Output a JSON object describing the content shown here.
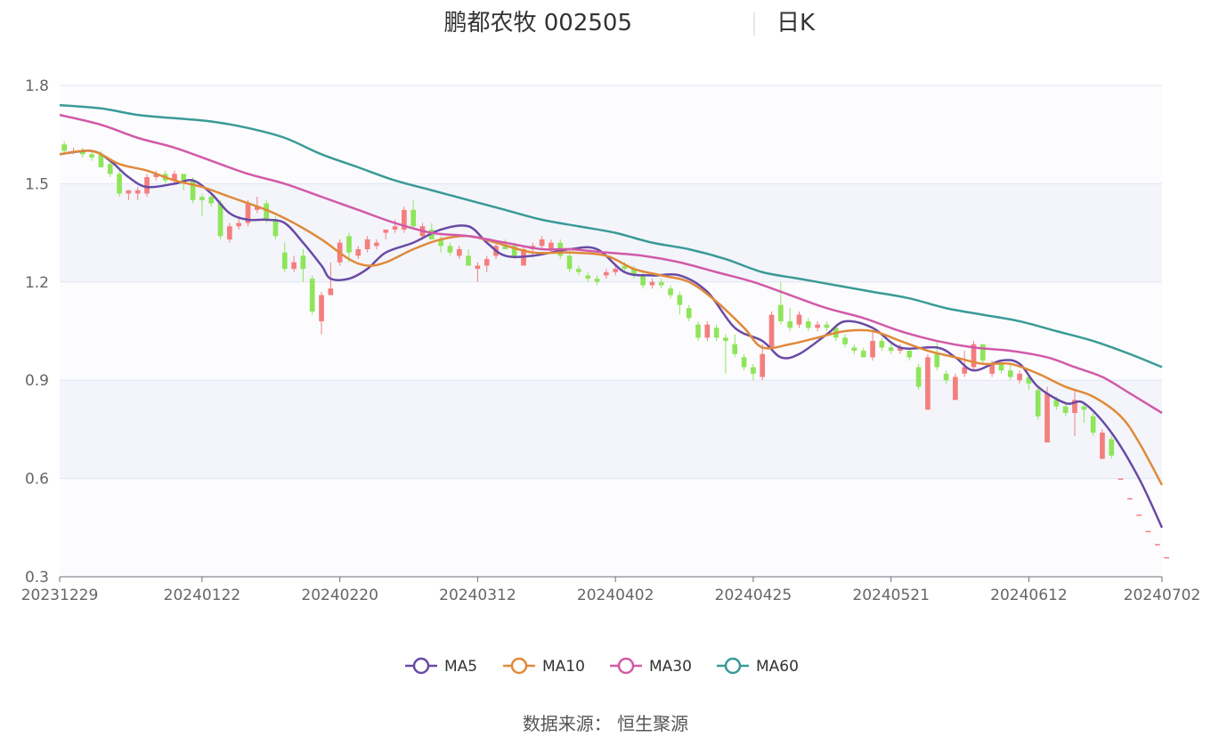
{
  "header": {
    "title": "鹏都农牧 002505",
    "subtitle": "日K"
  },
  "source_label": "数据来源：  恒生聚源",
  "colors": {
    "up": "#f47e7e",
    "down": "#8fe55a",
    "band": "#f3f5fb",
    "grid": "#e0e6f1",
    "MA5": "#6a4aa5",
    "MA10": "#e08a3a",
    "MA30": "#d25aa8",
    "MA60": "#3a9a96"
  },
  "chart_data": {
    "type": "candlestick",
    "ylim": [
      0.3,
      1.8
    ],
    "yticks": [
      "1.8",
      "1.5",
      "1.2",
      "0.9",
      "0.6",
      "0.3"
    ],
    "yticks_values": [
      1.8,
      1.5,
      1.2,
      0.9,
      0.6,
      0.3
    ],
    "xticks": [
      "20231229",
      "20240122",
      "20240220",
      "20240312",
      "20240402",
      "20240425",
      "20240521",
      "20240612",
      "20240702"
    ],
    "xtick_index": [
      0,
      15,
      30,
      45,
      60,
      75,
      90,
      105,
      119
    ],
    "n_days": 120,
    "grid": true,
    "legend_position": "bottom",
    "ma_series": [
      {
        "name": "MA5",
        "points": [
          [
            0,
            1.59
          ],
          [
            3,
            1.6
          ],
          [
            5,
            1.57
          ],
          [
            7,
            1.52
          ],
          [
            9,
            1.49
          ],
          [
            12,
            1.5
          ],
          [
            14,
            1.51
          ],
          [
            16,
            1.47
          ],
          [
            18,
            1.41
          ],
          [
            20,
            1.39
          ],
          [
            22,
            1.39
          ],
          [
            24,
            1.38
          ],
          [
            26,
            1.32
          ],
          [
            28,
            1.25
          ],
          [
            29,
            1.21
          ],
          [
            31,
            1.21
          ],
          [
            33,
            1.24
          ],
          [
            35,
            1.29
          ],
          [
            38,
            1.32
          ],
          [
            41,
            1.36
          ],
          [
            44,
            1.37
          ],
          [
            46,
            1.32
          ],
          [
            48,
            1.28
          ],
          [
            51,
            1.28
          ],
          [
            55,
            1.3
          ],
          [
            58,
            1.3
          ],
          [
            61,
            1.23
          ],
          [
            64,
            1.22
          ],
          [
            67,
            1.22
          ],
          [
            70,
            1.17
          ],
          [
            73,
            1.06
          ],
          [
            76,
            1.02
          ],
          [
            78,
            0.97
          ],
          [
            80,
            0.98
          ],
          [
            83,
            1.04
          ],
          [
            85,
            1.08
          ],
          [
            88,
            1.06
          ],
          [
            91,
            1.0
          ],
          [
            95,
            1.0
          ],
          [
            97,
            0.97
          ],
          [
            99,
            0.93
          ],
          [
            102,
            0.96
          ],
          [
            104,
            0.95
          ],
          [
            106,
            0.88
          ],
          [
            109,
            0.83
          ],
          [
            111,
            0.83
          ],
          [
            114,
            0.74
          ],
          [
            117,
            0.6
          ],
          [
            119,
            0.45
          ]
        ]
      },
      {
        "name": "MA10",
        "points": [
          [
            0,
            1.59
          ],
          [
            3,
            1.6
          ],
          [
            6,
            1.56
          ],
          [
            9,
            1.54
          ],
          [
            12,
            1.51
          ],
          [
            15,
            1.49
          ],
          [
            18,
            1.46
          ],
          [
            22,
            1.42
          ],
          [
            25,
            1.38
          ],
          [
            28,
            1.33
          ],
          [
            31,
            1.27
          ],
          [
            33,
            1.25
          ],
          [
            35,
            1.26
          ],
          [
            38,
            1.3
          ],
          [
            41,
            1.33
          ],
          [
            44,
            1.34
          ],
          [
            47,
            1.32
          ],
          [
            51,
            1.29
          ],
          [
            55,
            1.29
          ],
          [
            59,
            1.28
          ],
          [
            62,
            1.24
          ],
          [
            65,
            1.22
          ],
          [
            68,
            1.2
          ],
          [
            71,
            1.14
          ],
          [
            74,
            1.06
          ],
          [
            76,
            1.0
          ],
          [
            79,
            1.01
          ],
          [
            82,
            1.03
          ],
          [
            85,
            1.05
          ],
          [
            88,
            1.05
          ],
          [
            91,
            1.02
          ],
          [
            94,
            0.99
          ],
          [
            97,
            0.97
          ],
          [
            100,
            0.95
          ],
          [
            103,
            0.95
          ],
          [
            106,
            0.92
          ],
          [
            109,
            0.88
          ],
          [
            112,
            0.85
          ],
          [
            115,
            0.79
          ],
          [
            117,
            0.71
          ],
          [
            119,
            0.58
          ]
        ]
      },
      {
        "name": "MA30",
        "points": [
          [
            0,
            1.71
          ],
          [
            4,
            1.68
          ],
          [
            8,
            1.64
          ],
          [
            12,
            1.61
          ],
          [
            16,
            1.57
          ],
          [
            20,
            1.53
          ],
          [
            24,
            1.5
          ],
          [
            28,
            1.46
          ],
          [
            32,
            1.42
          ],
          [
            36,
            1.38
          ],
          [
            40,
            1.35
          ],
          [
            44,
            1.34
          ],
          [
            48,
            1.32
          ],
          [
            52,
            1.3
          ],
          [
            55,
            1.3
          ],
          [
            59,
            1.29
          ],
          [
            63,
            1.28
          ],
          [
            67,
            1.26
          ],
          [
            71,
            1.23
          ],
          [
            75,
            1.2
          ],
          [
            79,
            1.16
          ],
          [
            83,
            1.12
          ],
          [
            87,
            1.09
          ],
          [
            91,
            1.05
          ],
          [
            95,
            1.02
          ],
          [
            99,
            1.0
          ],
          [
            103,
            0.99
          ],
          [
            107,
            0.97
          ],
          [
            110,
            0.94
          ],
          [
            113,
            0.91
          ],
          [
            116,
            0.86
          ],
          [
            119,
            0.8
          ]
        ]
      },
      {
        "name": "MA60",
        "points": [
          [
            0,
            1.74
          ],
          [
            4,
            1.73
          ],
          [
            8,
            1.71
          ],
          [
            12,
            1.7
          ],
          [
            16,
            1.69
          ],
          [
            20,
            1.67
          ],
          [
            24,
            1.64
          ],
          [
            28,
            1.59
          ],
          [
            32,
            1.55
          ],
          [
            36,
            1.51
          ],
          [
            40,
            1.48
          ],
          [
            44,
            1.45
          ],
          [
            48,
            1.42
          ],
          [
            52,
            1.39
          ],
          [
            56,
            1.37
          ],
          [
            60,
            1.35
          ],
          [
            64,
            1.32
          ],
          [
            68,
            1.3
          ],
          [
            72,
            1.27
          ],
          [
            76,
            1.23
          ],
          [
            80,
            1.21
          ],
          [
            84,
            1.19
          ],
          [
            88,
            1.17
          ],
          [
            92,
            1.15
          ],
          [
            96,
            1.12
          ],
          [
            100,
            1.1
          ],
          [
            104,
            1.08
          ],
          [
            108,
            1.05
          ],
          [
            112,
            1.02
          ],
          [
            116,
            0.98
          ],
          [
            119,
            0.94
          ]
        ]
      }
    ],
    "candles": [
      [
        1.62,
        1.6,
        1.63,
        1.59
      ],
      [
        1.6,
        1.6,
        1.61,
        1.59
      ],
      [
        1.6,
        1.59,
        1.61,
        1.58
      ],
      [
        1.59,
        1.58,
        1.6,
        1.57
      ],
      [
        1.59,
        1.55,
        1.6,
        1.55
      ],
      [
        1.56,
        1.53,
        1.57,
        1.52
      ],
      [
        1.53,
        1.47,
        1.54,
        1.46
      ],
      [
        1.47,
        1.48,
        1.48,
        1.45
      ],
      [
        1.47,
        1.48,
        1.49,
        1.45
      ],
      [
        1.47,
        1.52,
        1.53,
        1.46
      ],
      [
        1.52,
        1.53,
        1.54,
        1.51
      ],
      [
        1.53,
        1.51,
        1.54,
        1.5
      ],
      [
        1.51,
        1.53,
        1.54,
        1.5
      ],
      [
        1.53,
        1.5,
        1.53,
        1.48
      ],
      [
        1.51,
        1.45,
        1.52,
        1.44
      ],
      [
        1.46,
        1.45,
        1.47,
        1.4
      ],
      [
        1.46,
        1.44,
        1.47,
        1.43
      ],
      [
        1.44,
        1.34,
        1.45,
        1.33
      ],
      [
        1.33,
        1.37,
        1.38,
        1.32
      ],
      [
        1.37,
        1.38,
        1.4,
        1.36
      ],
      [
        1.38,
        1.44,
        1.45,
        1.37
      ],
      [
        1.42,
        1.43,
        1.46,
        1.41
      ],
      [
        1.44,
        1.39,
        1.45,
        1.38
      ],
      [
        1.39,
        1.34,
        1.4,
        1.33
      ],
      [
        1.29,
        1.24,
        1.32,
        1.23
      ],
      [
        1.24,
        1.26,
        1.28,
        1.23
      ],
      [
        1.28,
        1.24,
        1.3,
        1.2
      ],
      [
        1.21,
        1.11,
        1.22,
        1.1
      ],
      [
        1.08,
        1.16,
        1.17,
        1.04
      ],
      [
        1.16,
        1.18,
        1.26,
        1.16
      ],
      [
        1.26,
        1.32,
        1.33,
        1.25
      ],
      [
        1.34,
        1.29,
        1.35,
        1.26
      ],
      [
        1.28,
        1.3,
        1.31,
        1.27
      ],
      [
        1.3,
        1.33,
        1.34,
        1.29
      ],
      [
        1.31,
        1.32,
        1.33,
        1.3
      ],
      [
        1.35,
        1.36,
        1.36,
        1.33
      ],
      [
        1.36,
        1.37,
        1.39,
        1.35
      ],
      [
        1.36,
        1.42,
        1.43,
        1.35
      ],
      [
        1.42,
        1.37,
        1.45,
        1.36
      ],
      [
        1.34,
        1.37,
        1.38,
        1.33
      ],
      [
        1.36,
        1.33,
        1.38,
        1.33
      ],
      [
        1.33,
        1.31,
        1.34,
        1.29
      ],
      [
        1.31,
        1.29,
        1.32,
        1.28
      ],
      [
        1.28,
        1.3,
        1.31,
        1.27
      ],
      [
        1.28,
        1.25,
        1.3,
        1.25
      ],
      [
        1.24,
        1.25,
        1.26,
        1.2
      ],
      [
        1.25,
        1.27,
        1.28,
        1.23
      ],
      [
        1.28,
        1.31,
        1.32,
        1.27
      ],
      [
        1.31,
        1.3,
        1.33,
        1.3
      ],
      [
        1.31,
        1.28,
        1.32,
        1.27
      ],
      [
        1.25,
        1.3,
        1.31,
        1.25
      ],
      [
        1.3,
        1.31,
        1.32,
        1.28
      ],
      [
        1.31,
        1.33,
        1.34,
        1.3
      ],
      [
        1.3,
        1.32,
        1.33,
        1.29
      ],
      [
        1.32,
        1.28,
        1.33,
        1.27
      ],
      [
        1.28,
        1.24,
        1.29,
        1.23
      ],
      [
        1.24,
        1.23,
        1.25,
        1.22
      ],
      [
        1.22,
        1.21,
        1.23,
        1.2
      ],
      [
        1.21,
        1.2,
        1.22,
        1.19
      ],
      [
        1.22,
        1.23,
        1.24,
        1.21
      ],
      [
        1.23,
        1.24,
        1.25,
        1.22
      ],
      [
        1.25,
        1.24,
        1.26,
        1.23
      ],
      [
        1.24,
        1.22,
        1.25,
        1.21
      ],
      [
        1.22,
        1.19,
        1.23,
        1.18
      ],
      [
        1.19,
        1.2,
        1.21,
        1.18
      ],
      [
        1.2,
        1.19,
        1.21,
        1.18
      ],
      [
        1.18,
        1.16,
        1.19,
        1.15
      ],
      [
        1.16,
        1.13,
        1.17,
        1.1
      ],
      [
        1.12,
        1.09,
        1.13,
        1.08
      ],
      [
        1.07,
        1.03,
        1.08,
        1.02
      ],
      [
        1.03,
        1.07,
        1.08,
        1.02
      ],
      [
        1.06,
        1.03,
        1.07,
        1.02
      ],
      [
        1.03,
        1.02,
        1.04,
        0.92
      ],
      [
        1.01,
        0.98,
        1.04,
        0.97
      ],
      [
        0.97,
        0.94,
        0.98,
        0.93
      ],
      [
        0.94,
        0.92,
        0.95,
        0.9
      ],
      [
        0.91,
        0.98,
        1.01,
        0.9
      ],
      [
        1.0,
        1.1,
        1.11,
        0.99
      ],
      [
        1.13,
        1.08,
        1.2,
        1.07
      ],
      [
        1.08,
        1.06,
        1.12,
        1.05
      ],
      [
        1.07,
        1.1,
        1.11,
        1.06
      ],
      [
        1.08,
        1.06,
        1.09,
        1.05
      ],
      [
        1.06,
        1.07,
        1.08,
        1.05
      ],
      [
        1.07,
        1.06,
        1.08,
        1.05
      ],
      [
        1.06,
        1.03,
        1.07,
        1.02
      ],
      [
        1.03,
        1.01,
        1.04,
        1.0
      ],
      [
        1.0,
        0.99,
        1.01,
        0.98
      ],
      [
        0.99,
        0.97,
        1.0,
        0.97
      ],
      [
        0.97,
        1.02,
        1.05,
        0.96
      ],
      [
        1.02,
        1.0,
        1.03,
        0.99
      ],
      [
        1.0,
        0.99,
        1.01,
        0.98
      ],
      [
        0.99,
        1.0,
        1.01,
        0.98
      ],
      [
        0.99,
        0.97,
        1.0,
        0.96
      ],
      [
        0.94,
        0.88,
        0.95,
        0.87
      ],
      [
        0.81,
        0.97,
        0.98,
        0.81
      ],
      [
        0.98,
        0.94,
        1.02,
        0.93
      ],
      [
        0.92,
        0.9,
        0.93,
        0.89
      ],
      [
        0.84,
        0.91,
        0.92,
        0.84
      ],
      [
        0.92,
        0.94,
        0.99,
        0.91
      ],
      [
        0.94,
        1.01,
        1.02,
        0.93
      ],
      [
        1.01,
        0.96,
        1.01,
        0.95
      ],
      [
        0.92,
        0.95,
        0.96,
        0.91
      ],
      [
        0.95,
        0.93,
        0.96,
        0.92
      ],
      [
        0.93,
        0.91,
        0.95,
        0.9
      ],
      [
        0.9,
        0.92,
        0.93,
        0.89
      ],
      [
        0.91,
        0.89,
        0.92,
        0.87
      ],
      [
        0.87,
        0.79,
        0.88,
        0.78
      ],
      [
        0.71,
        0.86,
        0.88,
        0.71
      ],
      [
        0.84,
        0.82,
        0.85,
        0.81
      ],
      [
        0.82,
        0.8,
        0.83,
        0.79
      ],
      [
        0.8,
        0.84,
        0.87,
        0.73
      ],
      [
        0.82,
        0.81,
        0.83,
        0.77
      ],
      [
        0.79,
        0.74,
        0.8,
        0.73
      ],
      [
        0.66,
        0.74,
        0.75,
        0.66
      ],
      [
        0.72,
        0.67,
        0.73,
        0.66
      ],
      [
        0.6,
        0.6,
        0.6,
        0.6
      ],
      [
        0.54,
        0.54,
        0.54,
        0.54
      ],
      [
        0.49,
        0.49,
        0.49,
        0.49
      ],
      [
        0.44,
        0.44,
        0.44,
        0.44
      ],
      [
        0.4,
        0.4,
        0.4,
        0.4
      ],
      [
        0.36,
        0.36,
        0.36,
        0.36
      ]
    ]
  }
}
